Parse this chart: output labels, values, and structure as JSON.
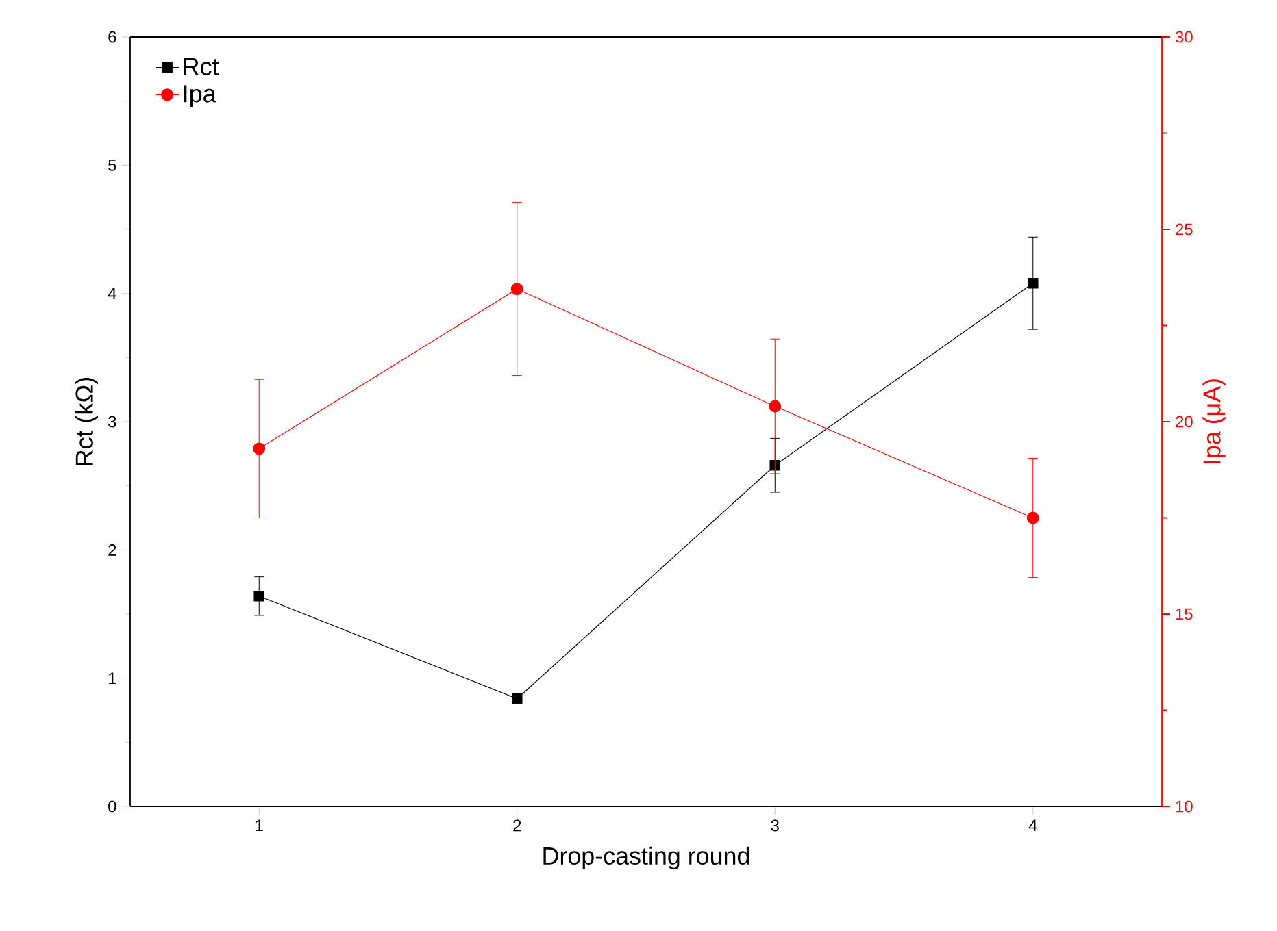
{
  "chart_data": {
    "type": "line",
    "xlabel": "Drop-casting round",
    "ylabel": "Rct (kΩ)",
    "y2label": "Ipa (μA)",
    "x": [
      1,
      2,
      3,
      4
    ],
    "xlim": [
      0.5,
      4.5
    ],
    "xticks": [
      1,
      2,
      3,
      4
    ],
    "ylim": [
      0,
      6
    ],
    "yticks": [
      0,
      1,
      2,
      3,
      4,
      5,
      6
    ],
    "y2lim": [
      10,
      30
    ],
    "y2ticks": [
      10,
      15,
      20,
      25,
      30
    ],
    "series": [
      {
        "name": "Rct",
        "color": "#000000",
        "marker": "square",
        "values": [
          1.64,
          0.84,
          2.66,
          4.08
        ],
        "errors": [
          0.15,
          null,
          0.21,
          0.36
        ]
      },
      {
        "name": "Ipa",
        "color": "#ff0000",
        "marker": "circle",
        "axis": "y2",
        "values": [
          19.3,
          23.45,
          20.4,
          17.5
        ],
        "errors": [
          1.8,
          2.25,
          1.75,
          1.55
        ]
      }
    ],
    "legend": "top left",
    "grid": false
  }
}
